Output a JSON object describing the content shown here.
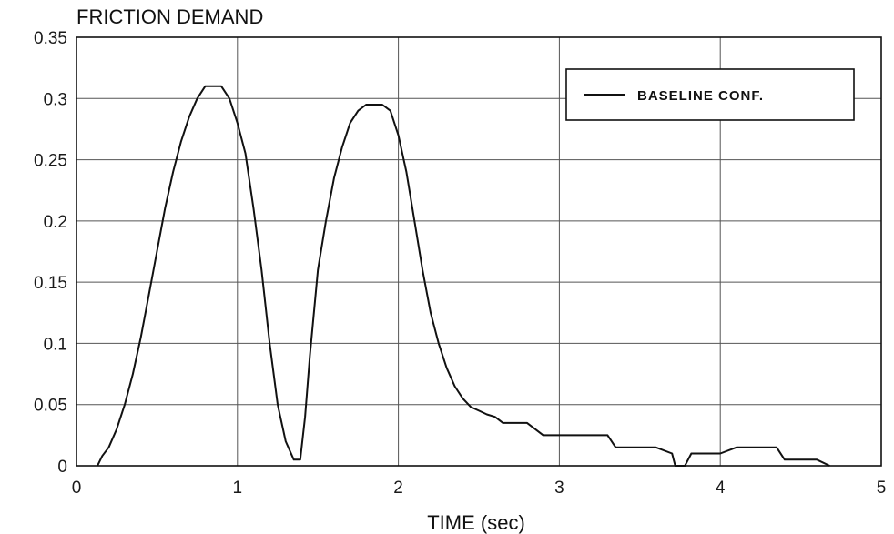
{
  "chart_data": {
    "type": "line",
    "title": "FRICTION DEMAND",
    "xlabel": "TIME (sec)",
    "ylabel": "",
    "xlim": [
      0,
      5
    ],
    "ylim": [
      0,
      0.35
    ],
    "x_ticks": [
      "0",
      "1",
      "2",
      "3",
      "4",
      "5"
    ],
    "y_ticks": [
      "0",
      "0.05",
      "0.1",
      "0.15",
      "0.2",
      "0.25",
      "0.3",
      "0.35"
    ],
    "grid": true,
    "legend": {
      "position": "top-right",
      "entries": [
        "BASELINE CONF."
      ]
    },
    "series": [
      {
        "name": "BASELINE CONF.",
        "x": [
          0.13,
          0.16,
          0.2,
          0.25,
          0.3,
          0.35,
          0.4,
          0.45,
          0.5,
          0.55,
          0.6,
          0.65,
          0.7,
          0.75,
          0.8,
          0.85,
          0.9,
          0.95,
          1.0,
          1.05,
          1.1,
          1.15,
          1.2,
          1.25,
          1.3,
          1.35,
          1.39,
          1.42,
          1.45,
          1.5,
          1.55,
          1.6,
          1.65,
          1.7,
          1.75,
          1.8,
          1.85,
          1.9,
          1.95,
          2.0,
          2.05,
          2.1,
          2.15,
          2.2,
          2.25,
          2.3,
          2.35,
          2.4,
          2.45,
          2.5,
          2.55,
          2.6,
          2.65,
          2.7,
          2.8,
          2.9,
          3.0,
          3.1,
          3.2,
          3.3,
          3.35,
          3.4,
          3.5,
          3.6,
          3.7,
          3.72,
          3.78,
          3.82,
          3.85,
          3.95,
          4.0,
          4.1,
          4.2,
          4.3,
          4.35,
          4.4,
          4.5,
          4.6,
          4.68
        ],
        "values": [
          0,
          0.008,
          0.015,
          0.03,
          0.05,
          0.075,
          0.105,
          0.14,
          0.175,
          0.21,
          0.24,
          0.265,
          0.285,
          0.3,
          0.31,
          0.31,
          0.31,
          0.3,
          0.28,
          0.255,
          0.21,
          0.16,
          0.1,
          0.05,
          0.02,
          0.005,
          0.005,
          0.04,
          0.09,
          0.16,
          0.2,
          0.235,
          0.26,
          0.28,
          0.29,
          0.295,
          0.295,
          0.295,
          0.29,
          0.27,
          0.24,
          0.2,
          0.16,
          0.125,
          0.1,
          0.08,
          0.065,
          0.055,
          0.048,
          0.045,
          0.042,
          0.04,
          0.035,
          0.035,
          0.035,
          0.025,
          0.025,
          0.025,
          0.025,
          0.025,
          0.015,
          0.015,
          0.015,
          0.015,
          0.01,
          0.0,
          0.0,
          0.01,
          0.01,
          0.01,
          0.01,
          0.015,
          0.015,
          0.015,
          0.015,
          0.005,
          0.005,
          0.005,
          0.0
        ]
      }
    ]
  }
}
